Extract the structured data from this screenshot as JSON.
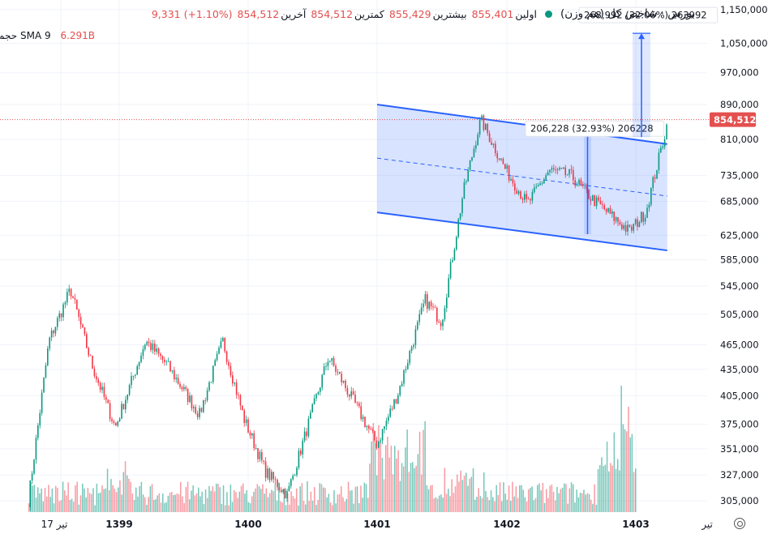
{
  "legend": {
    "title": "بورس · شاخص کل (هم وزن)",
    "open_label": "اولین",
    "open": "855,401",
    "high_label": "بیشترین",
    "high": "855,429",
    "low_label": "کمترین",
    "low": "854,512",
    "close_label": "آخرین",
    "close": "854,512",
    "change": "9,331 (+1.10%)"
  },
  "volume_legend": {
    "name": "حجم SMA 9",
    "value": "6.291B"
  },
  "colors": {
    "up": "#089981",
    "down": "#f23645",
    "channel": "#2962ff",
    "price_line": "#e3504f"
  },
  "chart_data": {
    "type": "candlestick",
    "y_scale": "log",
    "y_ticks": [
      "1,150,000",
      "1,050,000",
      "970,000",
      "890,000",
      "810,000",
      "735,000",
      "685,000",
      "625,000",
      "585,000",
      "545,000",
      "505,000",
      "465,000",
      "435,000",
      "405,000",
      "375,000",
      "351,000",
      "327,000",
      "305,000"
    ],
    "x_ticks": [
      "17 تیر",
      "1399",
      "1400",
      "1401",
      "1402",
      "1403",
      "تیر"
    ],
    "last_price": "854,512",
    "price_waypoints": [
      {
        "date": "1398-04-17",
        "value": 305000
      },
      {
        "date": "1398-06-15",
        "value": 470000
      },
      {
        "date": "1398-08-15",
        "value": 540000
      },
      {
        "date": "1398-10-15",
        "value": 440000
      },
      {
        "date": "1398-12-20",
        "value": 372000
      },
      {
        "date": "1399-03-15",
        "value": 470000
      },
      {
        "date": "1399-05-15",
        "value": 440000
      },
      {
        "date": "1399-08-15",
        "value": 385000
      },
      {
        "date": "1399-10-20",
        "value": 470000
      },
      {
        "date": "1399-12-20",
        "value": 380000
      },
      {
        "date": "1400-02-20",
        "value": 330000
      },
      {
        "date": "1400-04-20",
        "value": 310000
      },
      {
        "date": "1400-07-01",
        "value": 390000
      },
      {
        "date": "1400-08-15",
        "value": 450000
      },
      {
        "date": "1400-11-01",
        "value": 395000
      },
      {
        "date": "1401-01-01",
        "value": 355000
      },
      {
        "date": "1401-03-01",
        "value": 410000
      },
      {
        "date": "1401-05-15",
        "value": 525000
      },
      {
        "date": "1401-07-01",
        "value": 495000
      },
      {
        "date": "1401-09-01",
        "value": 700000
      },
      {
        "date": "1401-10-20",
        "value": 855000
      },
      {
        "date": "1402-01-01",
        "value": 745000
      },
      {
        "date": "1402-03-01",
        "value": 680000
      },
      {
        "date": "1402-05-01",
        "value": 745000
      },
      {
        "date": "1402-07-01",
        "value": 735000
      },
      {
        "date": "1402-09-01",
        "value": 690000
      },
      {
        "date": "1402-12-15",
        "value": 632000
      },
      {
        "date": "1403-02-01",
        "value": 665000
      },
      {
        "date": "1403-04-01",
        "value": 845000
      }
    ],
    "channel": {
      "upper": [
        {
          "date": "1401-01-01",
          "value": 890000
        },
        {
          "date": "1403-04-01",
          "value": 800000
        }
      ],
      "lower": [
        {
          "date": "1401-01-01",
          "value": 665000
        },
        {
          "date": "1403-04-01",
          "value": 600000
        }
      ],
      "mid": [
        {
          "date": "1401-01-01",
          "value": 770000
        },
        {
          "date": "1403-04-01",
          "value": 695000
        }
      ]
    },
    "measures": [
      {
        "label": "206,228 (32.93%) 206228",
        "from": 627000,
        "to": 833000
      },
      {
        "label": "263,992 (32.06%) 263992",
        "from": 815000,
        "to": 1079000
      }
    ]
  }
}
